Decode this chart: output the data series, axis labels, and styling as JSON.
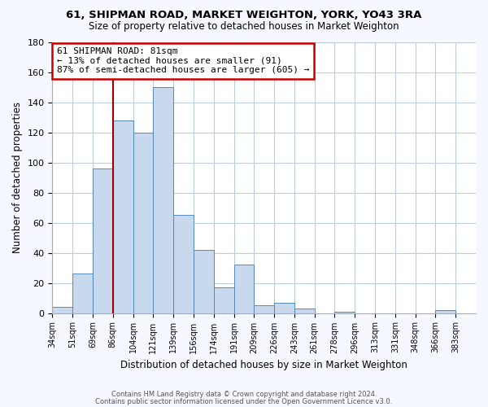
{
  "title": "61, SHIPMAN ROAD, MARKET WEIGHTON, YORK, YO43 3RA",
  "subtitle": "Size of property relative to detached houses in Market Weighton",
  "xlabel": "Distribution of detached houses by size in Market Weighton",
  "ylabel": "Number of detached properties",
  "categories": [
    "34sqm",
    "51sqm",
    "69sqm",
    "86sqm",
    "104sqm",
    "121sqm",
    "139sqm",
    "156sqm",
    "174sqm",
    "191sqm",
    "209sqm",
    "226sqm",
    "243sqm",
    "261sqm",
    "278sqm",
    "296sqm",
    "313sqm",
    "331sqm",
    "348sqm",
    "366sqm",
    "383sqm"
  ],
  "values": [
    4,
    26,
    96,
    128,
    120,
    150,
    65,
    42,
    17,
    32,
    5,
    7,
    3,
    0,
    1,
    0,
    0,
    0,
    0,
    2,
    0
  ],
  "bar_color": "#c8d9ee",
  "bar_edge_color": "#5588bb",
  "vline_x_index": 3,
  "vline_color": "#990000",
  "annotation_text": "61 SHIPMAN ROAD: 81sqm\n← 13% of detached houses are smaller (91)\n87% of semi-detached houses are larger (605) →",
  "annotation_box_color": "white",
  "annotation_box_edge_color": "#cc0000",
  "ylim": [
    0,
    180
  ],
  "yticks": [
    0,
    20,
    40,
    60,
    80,
    100,
    120,
    140,
    160,
    180
  ],
  "grid_color": "#bbccdd",
  "footer_line1": "Contains HM Land Registry data © Crown copyright and database right 2024.",
  "footer_line2": "Contains public sector information licensed under the Open Government Licence v3.0.",
  "background_color": "#ffffff",
  "fig_background_color": "#f5f8ff"
}
